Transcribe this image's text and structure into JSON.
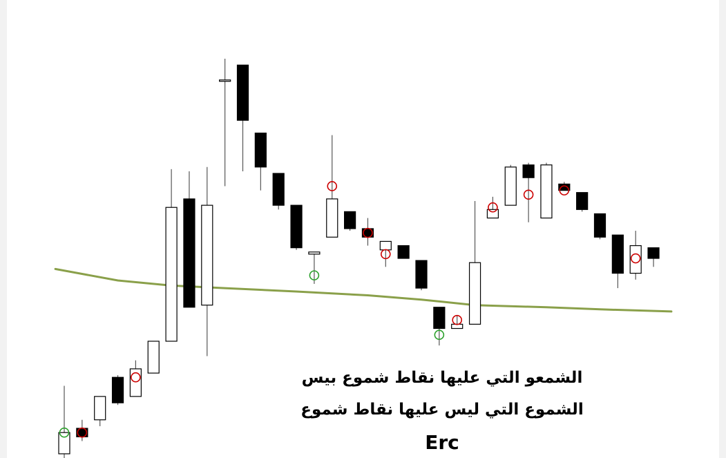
{
  "chart_data": {
    "type": "candlestick",
    "title": "",
    "xlabel": "",
    "ylabel": "",
    "grid": false,
    "ylim": [
      0,
      100
    ],
    "colors": {
      "bullish_body": "#ffffff",
      "bearish_body": "#000000",
      "wick": "#555555",
      "moving_average": "#8aa04a",
      "sell_marker": "#cc0000",
      "buy_marker": "#2ca02c"
    },
    "candles": [
      {
        "o": 0.5,
        "h": 16.5,
        "l": -0.5,
        "c": 5.5
      },
      {
        "o": 6.5,
        "h": 8.5,
        "l": 3.5,
        "c": 4.5
      },
      {
        "o": 8.5,
        "h": 14.0,
        "l": 7.0,
        "c": 14.0
      },
      {
        "o": 18.5,
        "h": 19.0,
        "l": 12.0,
        "c": 12.5
      },
      {
        "o": 14.0,
        "h": 22.5,
        "l": 14.0,
        "c": 20.5
      },
      {
        "o": 19.5,
        "h": 27.0,
        "l": 19.5,
        "c": 27.0
      },
      {
        "o": 27.0,
        "h": 67.5,
        "l": 27.0,
        "c": 58.5
      },
      {
        "o": 60.5,
        "h": 67.0,
        "l": 35.0,
        "c": 35.0
      },
      {
        "o": 35.5,
        "h": 68.0,
        "l": 23.5,
        "c": 59.0
      },
      {
        "o": 88.5,
        "h": 93.5,
        "l": 63.5,
        "c": 88.5
      },
      {
        "o": 92.0,
        "h": 92.0,
        "l": 67.0,
        "c": 79.0
      },
      {
        "o": 76.0,
        "h": 76.0,
        "l": 62.5,
        "c": 68.0
      },
      {
        "o": 66.5,
        "h": 66.5,
        "l": 58.0,
        "c": 59.0
      },
      {
        "o": 59.0,
        "h": 59.0,
        "l": 48.5,
        "c": 49.0
      },
      {
        "o": 47.5,
        "h": 48.0,
        "l": 40.5,
        "c": 48.0
      },
      {
        "o": 51.5,
        "h": 75.5,
        "l": 51.5,
        "c": 60.5
      },
      {
        "o": 57.5,
        "h": 57.5,
        "l": 53.0,
        "c": 53.5
      },
      {
        "o": 53.5,
        "h": 56.0,
        "l": 49.5,
        "c": 51.5
      },
      {
        "o": 48.5,
        "h": 50.5,
        "l": 44.5,
        "c": 50.5
      },
      {
        "o": 49.5,
        "h": 49.5,
        "l": 46.5,
        "c": 46.5
      },
      {
        "o": 46.0,
        "h": 46.0,
        "l": 39.0,
        "c": 39.5
      },
      {
        "o": 35.0,
        "h": 35.0,
        "l": 26.0,
        "c": 30.0
      },
      {
        "o": 30.0,
        "h": 33.0,
        "l": 30.0,
        "c": 31.0
      },
      {
        "o": 31.0,
        "h": 60.0,
        "l": 31.0,
        "c": 45.5
      },
      {
        "o": 56.0,
        "h": 61.0,
        "l": 56.0,
        "c": 58.0
      },
      {
        "o": 59.0,
        "h": 68.5,
        "l": 59.0,
        "c": 68.0
      },
      {
        "o": 68.5,
        "h": 69.0,
        "l": 55.0,
        "c": 65.5
      },
      {
        "o": 56.0,
        "h": 69.0,
        "l": 56.0,
        "c": 68.5
      },
      {
        "o": 64.0,
        "h": 64.5,
        "l": 62.5,
        "c": 62.5
      },
      {
        "o": 62.0,
        "h": 62.0,
        "l": 57.5,
        "c": 58.0
      },
      {
        "o": 57.0,
        "h": 57.0,
        "l": 51.0,
        "c": 51.5
      },
      {
        "o": 52.0,
        "h": 52.0,
        "l": 39.5,
        "c": 43.0
      },
      {
        "o": 43.0,
        "h": 53.0,
        "l": 41.5,
        "c": 49.5
      },
      {
        "o": 49.0,
        "h": 49.0,
        "l": 44.5,
        "c": 46.5
      }
    ],
    "markers": [
      {
        "index": 0,
        "y": 5.5,
        "kind": "buy"
      },
      {
        "index": 1,
        "y": 5.5,
        "kind": "sell"
      },
      {
        "index": 4,
        "y": 18.5,
        "kind": "sell"
      },
      {
        "index": 14,
        "y": 42.5,
        "kind": "buy"
      },
      {
        "index": 15,
        "y": 63.5,
        "kind": "sell"
      },
      {
        "index": 17,
        "y": 52.5,
        "kind": "sell"
      },
      {
        "index": 18,
        "y": 47.5,
        "kind": "sell"
      },
      {
        "index": 21,
        "y": 28.5,
        "kind": "buy"
      },
      {
        "index": 22,
        "y": 32.0,
        "kind": "sell"
      },
      {
        "index": 24,
        "y": 58.5,
        "kind": "sell"
      },
      {
        "index": 26,
        "y": 61.5,
        "kind": "sell"
      },
      {
        "index": 28,
        "y": 62.5,
        "kind": "sell"
      },
      {
        "index": 32,
        "y": 46.5,
        "kind": "sell"
      }
    ],
    "moving_average": [
      [
        -0.5,
        44.0
      ],
      [
        3.0,
        41.3
      ],
      [
        6.0,
        40.1
      ],
      [
        9.0,
        39.5
      ],
      [
        13.0,
        38.7
      ],
      [
        17.0,
        37.8
      ],
      [
        20.0,
        36.8
      ],
      [
        23.0,
        35.5
      ],
      [
        27.0,
        35.0
      ],
      [
        30.0,
        34.5
      ],
      [
        34.0,
        34.0
      ]
    ]
  },
  "annotations": {
    "line1": "الشمعو التي عليها نقاط شموع بيس",
    "line2": "الشموع التي ليس عليها نقاط شموع",
    "line3": "Erc"
  }
}
